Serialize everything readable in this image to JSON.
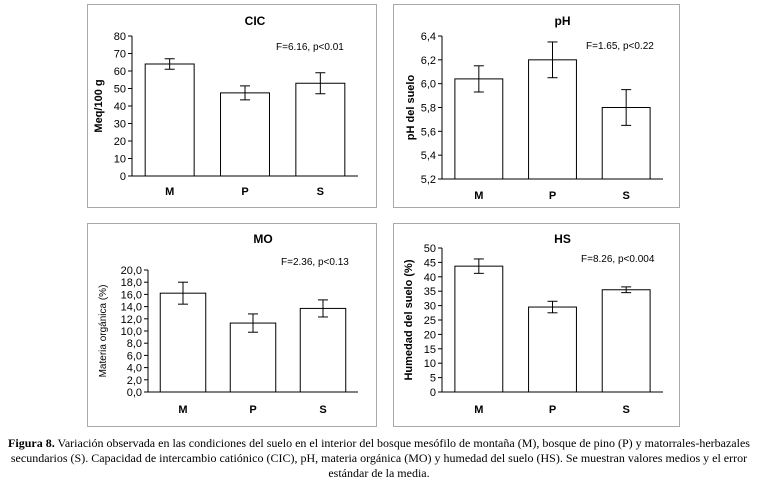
{
  "chart_data": [
    {
      "id": "cic",
      "type": "bar",
      "title": "CIC",
      "xlabel": "",
      "ylabel": "Meq/100 g",
      "categories": [
        "M",
        "P",
        "S"
      ],
      "values": [
        64,
        47.5,
        53
      ],
      "errors": [
        3,
        4,
        6
      ],
      "ylim": [
        0,
        80
      ],
      "yticks": [
        "0",
        "10",
        "20",
        "30",
        "40",
        "50",
        "60",
        "70",
        "80"
      ],
      "annotation": "F=6.16, p<0.01"
    },
    {
      "id": "ph",
      "type": "bar",
      "title": "pH",
      "xlabel": "",
      "ylabel": "pH del suelo",
      "categories": [
        "M",
        "P",
        "S"
      ],
      "values": [
        6.04,
        6.2,
        5.8
      ],
      "errors": [
        0.11,
        0.15,
        0.15
      ],
      "ylim": [
        5.2,
        6.4
      ],
      "yticks": [
        "5,2",
        "5,4",
        "5,6",
        "5,8",
        "6,0",
        "6,2",
        "6,4"
      ],
      "annotation": "F=1.65, p<0.22"
    },
    {
      "id": "mo",
      "type": "bar",
      "title": "MO",
      "xlabel": "",
      "ylabel": "Materia orgánica (%)",
      "categories": [
        "M",
        "P",
        "S"
      ],
      "values": [
        16.2,
        11.3,
        13.7
      ],
      "errors": [
        1.8,
        1.5,
        1.4
      ],
      "ylim": [
        0,
        20
      ],
      "yticks": [
        "0,0",
        "2,0",
        "4,0",
        "6,0",
        "8,0",
        "10,0",
        "12,0",
        "14,0",
        "16,0",
        "18,0",
        "20,0"
      ],
      "annotation": "F=2.36, p<0.13"
    },
    {
      "id": "hs",
      "type": "bar",
      "title": "HS",
      "xlabel": "",
      "ylabel": "Humedad del suelo (%)",
      "categories": [
        "M",
        "P",
        "S"
      ],
      "values": [
        43.7,
        29.5,
        35.5
      ],
      "errors": [
        2.5,
        2,
        1
      ],
      "ylim": [
        0,
        50
      ],
      "yticks": [
        "0",
        "5",
        "10",
        "15",
        "20",
        "25",
        "30",
        "35",
        "40",
        "45",
        "50"
      ],
      "annotation": "F=8.26, p<0.004"
    }
  ],
  "caption": {
    "label": "Figura 8.",
    "text": " Variación observada en las condiciones del suelo en el interior del bosque mesófilo de montaña (M), bosque de pino (P) y matorrales-herbazales secundarios (S). Capacidad de intercambio catiónico (CIC), pH, materia orgánica (MO) y humedad del suelo (HS). Se muestran valores medios y el error estándar de la media."
  }
}
